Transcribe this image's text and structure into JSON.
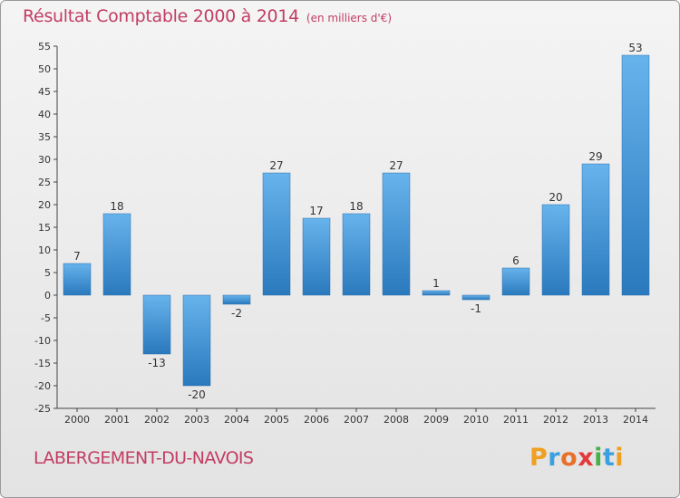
{
  "header": {
    "title": "Résultat Comptable 2000 à 2014",
    "subtitle": "(en milliers d'€)"
  },
  "footer": {
    "commune": "LABERGEMENT-DU-NAVOIS",
    "logo_text": "Proxiti"
  },
  "colors": {
    "title": "#c23d63",
    "bar_light": "#67b3ec",
    "bar_dark": "#2a79bd",
    "axis": "#444444",
    "grid": "#d8d8d8"
  },
  "chart_data": {
    "type": "bar",
    "title": "Résultat Comptable 2000 à 2014",
    "subtitle": "(en milliers d'€)",
    "xlabel": "",
    "ylabel": "",
    "categories": [
      "2000",
      "2001",
      "2002",
      "2003",
      "2004",
      "2005",
      "2006",
      "2007",
      "2008",
      "2009",
      "2010",
      "2011",
      "2012",
      "2013",
      "2014"
    ],
    "values": [
      7,
      18,
      -13,
      -20,
      -2,
      27,
      17,
      18,
      27,
      1,
      -1,
      6,
      20,
      29,
      53
    ],
    "data_labels": [
      "7",
      "18",
      "-13",
      "-20",
      "-2",
      "27",
      "17",
      "18",
      "27",
      "1",
      "-1",
      "6",
      "20",
      "29",
      "53"
    ],
    "ylim": [
      -25,
      55
    ],
    "yticks": [
      -25,
      -20,
      -15,
      -10,
      -5,
      0,
      5,
      10,
      15,
      20,
      25,
      30,
      35,
      40,
      45,
      50,
      55
    ],
    "grid": false,
    "legend": "none"
  }
}
